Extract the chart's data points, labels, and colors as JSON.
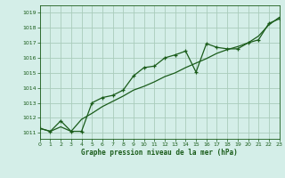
{
  "title": "Graphe pression niveau de la mer (hPa)",
  "background_color": "#d4eee8",
  "grid_color": "#aaccbb",
  "line_color": "#1a5c1a",
  "ylim": [
    1010.6,
    1019.5
  ],
  "xlim": [
    0,
    23
  ],
  "yticks": [
    1011,
    1012,
    1013,
    1014,
    1015,
    1016,
    1017,
    1018,
    1019
  ],
  "xticks": [
    0,
    1,
    2,
    3,
    4,
    5,
    6,
    7,
    8,
    9,
    10,
    11,
    12,
    13,
    14,
    15,
    16,
    17,
    18,
    19,
    20,
    21,
    22,
    23
  ],
  "line1_x": [
    0,
    1,
    2,
    3,
    4,
    5,
    6,
    7,
    8,
    9,
    10,
    11,
    12,
    13,
    14,
    15,
    16,
    17,
    18,
    19,
    20,
    21,
    22,
    23
  ],
  "line1_y": [
    1011.3,
    1011.1,
    1011.8,
    1011.1,
    1011.1,
    1013.0,
    1013.35,
    1013.5,
    1013.85,
    1014.8,
    1015.35,
    1015.45,
    1016.0,
    1016.2,
    1016.45,
    1015.05,
    1016.95,
    1016.7,
    1016.6,
    1016.6,
    1017.0,
    1017.2,
    1018.3,
    1018.6
  ],
  "line2_x": [
    0,
    1,
    2,
    3,
    4,
    5,
    6,
    7,
    8,
    9,
    10,
    11,
    12,
    13,
    14,
    15,
    16,
    17,
    18,
    19,
    20,
    21,
    22,
    23
  ],
  "line2_y": [
    1011.3,
    1011.1,
    1011.4,
    1011.1,
    1011.9,
    1012.3,
    1012.75,
    1013.1,
    1013.45,
    1013.85,
    1014.1,
    1014.4,
    1014.75,
    1015.0,
    1015.35,
    1015.65,
    1015.95,
    1016.3,
    1016.55,
    1016.75,
    1017.0,
    1017.45,
    1018.2,
    1018.7
  ]
}
